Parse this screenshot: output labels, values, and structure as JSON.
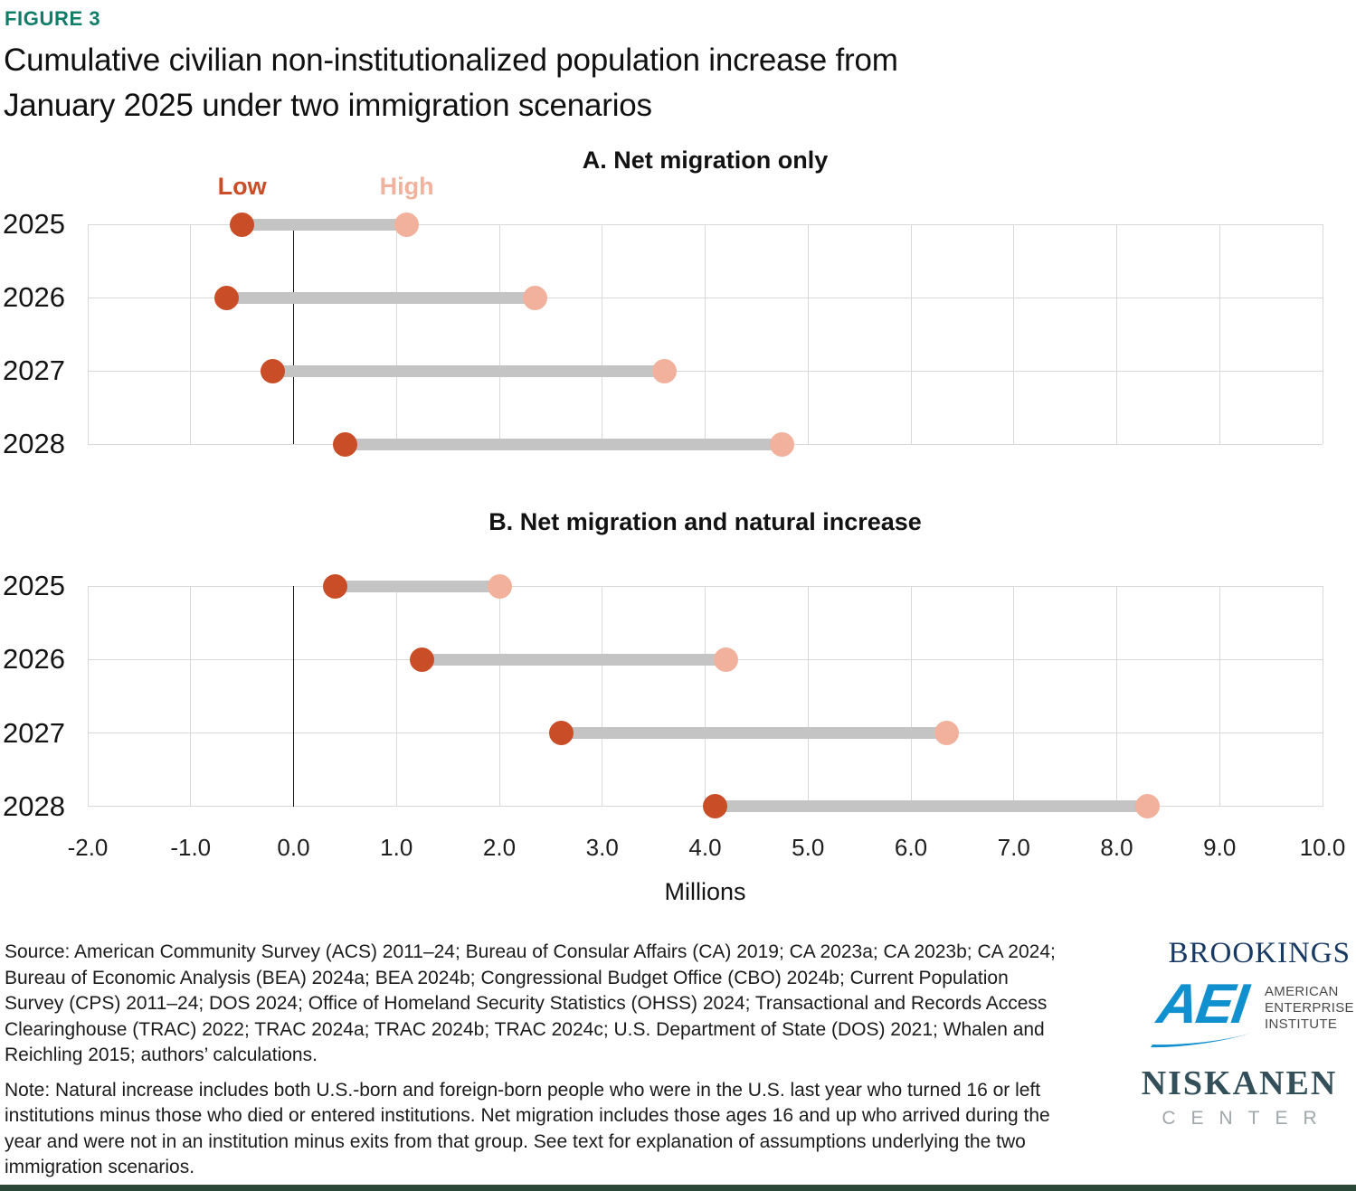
{
  "figure_label": "FIGURE 3",
  "title_lines": [
    "Cumulative civilian non-institutionalized population increase from",
    "January 2025 under two immigration scenarios"
  ],
  "x_axis": {
    "tick_labels": [
      "-2.0",
      "-1.0",
      "0.0",
      "1.0",
      "2.0",
      "3.0",
      "4.0",
      "5.0",
      "6.0",
      "7.0",
      "8.0",
      "9.0",
      "10.0"
    ],
    "label": "Millions"
  },
  "chart_data": [
    {
      "type": "dumbbell",
      "title": "A. Net migration only",
      "categories": [
        "2025",
        "2026",
        "2027",
        "2028"
      ],
      "series": [
        {
          "name": "Low",
          "values": [
            -0.5,
            -0.65,
            -0.2,
            0.5
          ]
        },
        {
          "name": "High",
          "values": [
            1.1,
            2.35,
            3.6,
            4.75
          ]
        }
      ],
      "xlim": [
        -2.0,
        10.0
      ],
      "xlabel": "Millions",
      "grid": true,
      "legend_position": "above-first-row"
    },
    {
      "type": "dumbbell",
      "title": "B. Net migration and natural increase",
      "categories": [
        "2025",
        "2026",
        "2027",
        "2028"
      ],
      "series": [
        {
          "name": "Low",
          "values": [
            0.4,
            1.25,
            2.6,
            4.1
          ]
        },
        {
          "name": "High",
          "values": [
            2.0,
            4.2,
            6.35,
            8.3
          ]
        }
      ],
      "xlim": [
        -2.0,
        10.0
      ],
      "xlabel": "Millions",
      "grid": true
    }
  ],
  "source": "Source: American Community Survey (ACS) 2011–24; Bureau of Consular Affairs (CA) 2019; CA 2023a; CA 2023b; CA 2024; Bureau of Economic Analysis (BEA) 2024a; BEA 2024b; Congressional Budget Office (CBO) 2024b; Current Population Survey (CPS) 2011–24; DOS 2024; Office of Homeland Security Statistics (OHSS) 2024; Transactional and Records Access Clearinghouse (TRAC) 2022; TRAC 2024a; TRAC 2024b; TRAC 2024c; U.S. Department of State (DOS) 2021; Whalen and Reichling 2015; authors’ calculations.",
  "note": "Note: Natural increase includes both U.S.-born and foreign-born people who were in the U.S. last year who turned 16 or left institutions minus those who died or entered institutions. Net migration includes those ages 16 and up who arrived during the year and were not in an institution minus exits from that group. See text for explanation of assumptions underlying the two immigration scenarios.",
  "logos": {
    "brookings": "BROOKINGS",
    "aei_mark": "AEI",
    "aei_lines": [
      "AMERICAN",
      "ENTERPRISE",
      "INSTITUTE"
    ],
    "niskanen_name": "NISKANEN",
    "niskanen_sub": "CENTER"
  },
  "colors": {
    "low": "#C94D26",
    "high": "#F1B19C",
    "connector": "#C4C4C4",
    "figure_label": "#0F7D68",
    "grid": "#D8D8D8",
    "zero_line": "#1A1A1A",
    "footer_bar": "#2A4838",
    "brookings_navy": "#173963",
    "aei_blue": "#1090CE",
    "niskanen_slate": "#33505A",
    "niskanen_gray": "#9FA8AB"
  }
}
